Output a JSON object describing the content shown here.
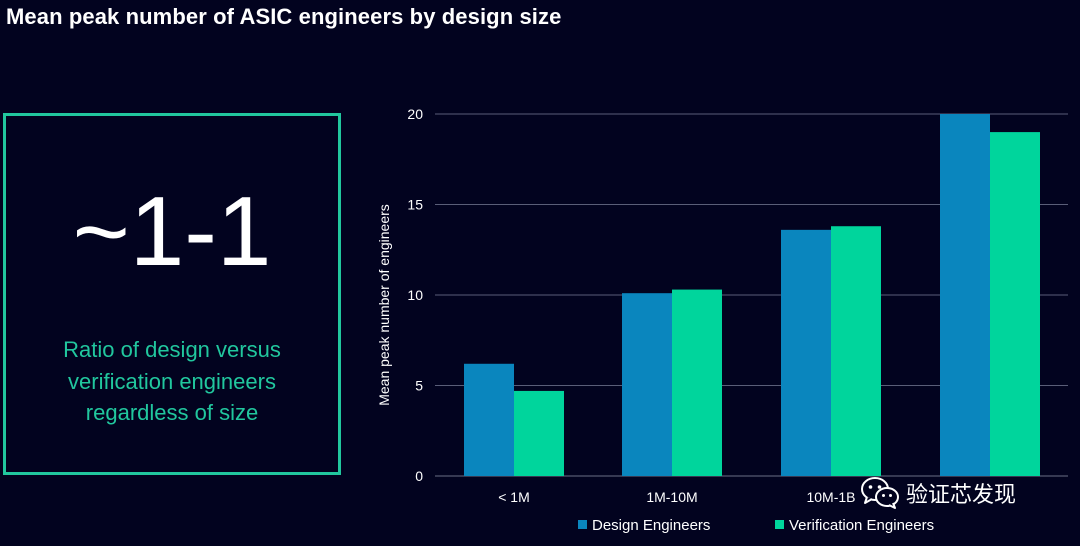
{
  "header": {
    "title": "Mean peak number of ASIC engineers by design size"
  },
  "callout": {
    "value": "~1-1",
    "caption_lines": [
      "Ratio of design versus",
      "verification engineers",
      "regardless of size"
    ],
    "accent_color": "#21c79e"
  },
  "chart_data": {
    "type": "bar",
    "categories": [
      "< 1M",
      "1M-10M",
      "10M-1B",
      ""
    ],
    "series": [
      {
        "name": "Design Engineers",
        "values": [
          6.2,
          10.1,
          13.6,
          20.0
        ],
        "color": "#0a86be"
      },
      {
        "name": "Verification Engineers",
        "values": [
          4.7,
          10.3,
          13.8,
          19.0
        ],
        "color": "#00d59c"
      }
    ],
    "ylabel": "Mean peak number of engineers",
    "xlabel": "",
    "ylim": [
      0,
      20
    ],
    "yticks": [
      0,
      5,
      10,
      15,
      20
    ],
    "grid": true,
    "legend_position": "bottom"
  },
  "watermark": {
    "text": "验证芯发现",
    "icon": "wechat-icon"
  }
}
